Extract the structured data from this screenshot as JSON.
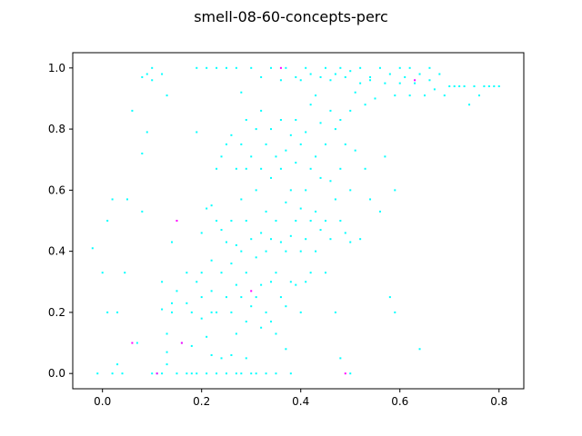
{
  "chart_data": {
    "type": "scatter",
    "title": "smell-08-60-concepts-perc",
    "xlabel": "",
    "ylabel": "",
    "xlim": [
      -0.06,
      0.85
    ],
    "ylim": [
      -0.05,
      1.05
    ],
    "xticks": [
      0.0,
      0.2,
      0.4,
      0.6,
      0.8
    ],
    "yticks": [
      0.0,
      0.2,
      0.4,
      0.6,
      0.8,
      1.0
    ],
    "xtick_labels": [
      "0.0",
      "0.2",
      "0.4",
      "0.6",
      "0.8"
    ],
    "ytick_labels": [
      "0.0",
      "0.2",
      "0.4",
      "0.6",
      "0.8",
      "1.0"
    ],
    "grid": false,
    "legend": "none",
    "series": [
      {
        "color": "#00ffff",
        "points": [
          [
            -0.02,
            0.41
          ],
          [
            -0.01,
            0.0
          ],
          [
            0.0,
            0.33
          ],
          [
            0.01,
            0.5
          ],
          [
            0.01,
            0.2
          ],
          [
            0.02,
            0.57
          ],
          [
            0.02,
            0.0
          ],
          [
            0.03,
            0.03
          ],
          [
            0.03,
            0.2
          ],
          [
            0.04,
            0.0
          ],
          [
            0.045,
            0.33
          ],
          [
            0.05,
            0.57
          ],
          [
            0.06,
            0.86
          ],
          [
            0.07,
            0.1
          ],
          [
            0.08,
            0.72
          ],
          [
            0.08,
            0.53
          ],
          [
            0.09,
            0.79
          ],
          [
            0.08,
            0.97
          ],
          [
            0.09,
            0.98
          ],
          [
            0.1,
            0.96
          ],
          [
            0.1,
            0.0
          ],
          [
            0.1,
            1.0
          ],
          [
            0.11,
            0.0
          ],
          [
            0.12,
            0.0
          ],
          [
            0.12,
            0.98
          ],
          [
            0.13,
            0.91
          ],
          [
            0.13,
            0.03
          ],
          [
            0.12,
            0.3
          ],
          [
            0.12,
            0.21
          ],
          [
            0.13,
            0.13
          ],
          [
            0.13,
            0.07
          ],
          [
            0.14,
            0.43
          ],
          [
            0.14,
            0.2
          ],
          [
            0.14,
            0.23
          ],
          [
            0.15,
            0.0
          ],
          [
            0.15,
            0.27
          ],
          [
            0.16,
            0.1
          ],
          [
            0.17,
            0.0
          ],
          [
            0.17,
            0.33
          ],
          [
            0.17,
            0.23
          ],
          [
            0.18,
            0.2
          ],
          [
            0.18,
            0.09
          ],
          [
            0.18,
            0.0
          ],
          [
            0.19,
            0.79
          ],
          [
            0.19,
            0.3
          ],
          [
            0.19,
            0.0
          ],
          [
            0.19,
            1.0
          ],
          [
            0.2,
            0.46
          ],
          [
            0.2,
            0.33
          ],
          [
            0.2,
            0.25
          ],
          [
            0.2,
            0.18
          ],
          [
            0.21,
            0.54
          ],
          [
            0.21,
            0.0
          ],
          [
            0.21,
            0.12
          ],
          [
            0.21,
            1.0
          ],
          [
            0.22,
            0.55
          ],
          [
            0.22,
            0.37
          ],
          [
            0.22,
            0.27
          ],
          [
            0.22,
            0.2
          ],
          [
            0.22,
            0.06
          ],
          [
            0.23,
            0.67
          ],
          [
            0.23,
            0.5
          ],
          [
            0.23,
            0.2
          ],
          [
            0.23,
            0.0
          ],
          [
            0.23,
            1.0
          ],
          [
            0.24,
            0.71
          ],
          [
            0.24,
            0.47
          ],
          [
            0.24,
            0.33
          ],
          [
            0.24,
            0.05
          ],
          [
            0.25,
            0.75
          ],
          [
            0.25,
            0.43
          ],
          [
            0.25,
            0.25
          ],
          [
            0.25,
            0.0
          ],
          [
            0.25,
            1.0
          ],
          [
            0.26,
            0.78
          ],
          [
            0.26,
            0.5
          ],
          [
            0.26,
            0.36
          ],
          [
            0.26,
            0.2
          ],
          [
            0.26,
            0.06
          ],
          [
            0.27,
            0.67
          ],
          [
            0.27,
            0.42
          ],
          [
            0.27,
            0.29
          ],
          [
            0.27,
            0.13
          ],
          [
            0.27,
            0.0
          ],
          [
            0.27,
            1.0
          ],
          [
            0.28,
            0.75
          ],
          [
            0.28,
            0.57
          ],
          [
            0.28,
            0.4
          ],
          [
            0.28,
            0.25
          ],
          [
            0.28,
            0.0
          ],
          [
            0.28,
            0.92
          ],
          [
            0.29,
            0.83
          ],
          [
            0.29,
            0.67
          ],
          [
            0.29,
            0.5
          ],
          [
            0.29,
            0.33
          ],
          [
            0.29,
            0.17
          ],
          [
            0.29,
            0.05
          ],
          [
            0.3,
            0.71
          ],
          [
            0.3,
            0.44
          ],
          [
            0.3,
            0.22
          ],
          [
            0.3,
            0.0
          ],
          [
            0.3,
            1.0
          ],
          [
            0.31,
            0.8
          ],
          [
            0.31,
            0.6
          ],
          [
            0.31,
            0.38
          ],
          [
            0.31,
            0.25
          ],
          [
            0.31,
            0.0
          ],
          [
            0.32,
            0.86
          ],
          [
            0.32,
            0.67
          ],
          [
            0.32,
            0.46
          ],
          [
            0.32,
            0.29
          ],
          [
            0.32,
            0.15
          ],
          [
            0.32,
            0.97
          ],
          [
            0.33,
            0.75
          ],
          [
            0.33,
            0.53
          ],
          [
            0.33,
            0.4
          ],
          [
            0.33,
            0.2
          ],
          [
            0.33,
            0.0
          ],
          [
            0.34,
            0.8
          ],
          [
            0.34,
            0.64
          ],
          [
            0.34,
            0.44
          ],
          [
            0.34,
            0.3
          ],
          [
            0.34,
            0.17
          ],
          [
            0.34,
            1.0
          ],
          [
            0.35,
            0.71
          ],
          [
            0.35,
            0.5
          ],
          [
            0.35,
            0.33
          ],
          [
            0.35,
            0.13
          ],
          [
            0.35,
            0.0
          ],
          [
            0.36,
            0.83
          ],
          [
            0.36,
            0.67
          ],
          [
            0.36,
            0.43
          ],
          [
            0.36,
            0.25
          ],
          [
            0.36,
            0.96
          ],
          [
            0.37,
            0.73
          ],
          [
            0.37,
            0.56
          ],
          [
            0.37,
            0.4
          ],
          [
            0.37,
            0.22
          ],
          [
            0.37,
            0.08
          ],
          [
            0.37,
            1.0
          ],
          [
            0.38,
            0.78
          ],
          [
            0.38,
            0.6
          ],
          [
            0.38,
            0.45
          ],
          [
            0.38,
            0.3
          ],
          [
            0.38,
            0.0
          ],
          [
            0.39,
            0.83
          ],
          [
            0.39,
            0.69
          ],
          [
            0.39,
            0.5
          ],
          [
            0.39,
            0.29
          ],
          [
            0.39,
            0.97
          ],
          [
            0.4,
            0.75
          ],
          [
            0.4,
            0.54
          ],
          [
            0.4,
            0.4
          ],
          [
            0.4,
            0.2
          ],
          [
            0.4,
            0.96
          ],
          [
            0.41,
            0.79
          ],
          [
            0.41,
            0.6
          ],
          [
            0.41,
            0.44
          ],
          [
            0.41,
            0.3
          ],
          [
            0.41,
            1.0
          ],
          [
            0.42,
            0.88
          ],
          [
            0.42,
            0.67
          ],
          [
            0.42,
            0.5
          ],
          [
            0.42,
            0.33
          ],
          [
            0.42,
            0.98
          ],
          [
            0.43,
            0.71
          ],
          [
            0.43,
            0.53
          ],
          [
            0.43,
            0.4
          ],
          [
            0.43,
            0.91
          ],
          [
            0.44,
            0.82
          ],
          [
            0.44,
            0.64
          ],
          [
            0.44,
            0.47
          ],
          [
            0.44,
            0.97
          ],
          [
            0.45,
            0.75
          ],
          [
            0.45,
            0.5
          ],
          [
            0.45,
            0.33
          ],
          [
            0.45,
            1.0
          ],
          [
            0.46,
            0.86
          ],
          [
            0.46,
            0.63
          ],
          [
            0.46,
            0.44
          ],
          [
            0.46,
            0.96
          ],
          [
            0.47,
            0.8
          ],
          [
            0.47,
            0.57
          ],
          [
            0.47,
            0.2
          ],
          [
            0.47,
            0.98
          ],
          [
            0.48,
            0.83
          ],
          [
            0.48,
            0.67
          ],
          [
            0.48,
            0.5
          ],
          [
            0.48,
            0.05
          ],
          [
            0.48,
            1.0
          ],
          [
            0.49,
            0.75
          ],
          [
            0.49,
            0.46
          ],
          [
            0.49,
            0.97
          ],
          [
            0.5,
            0.86
          ],
          [
            0.5,
            0.6
          ],
          [
            0.5,
            0.43
          ],
          [
            0.5,
            0.0
          ],
          [
            0.5,
            0.99
          ],
          [
            0.51,
            0.92
          ],
          [
            0.51,
            0.73
          ],
          [
            0.52,
            0.95
          ],
          [
            0.52,
            0.44
          ],
          [
            0.52,
            1.0
          ],
          [
            0.53,
            0.88
          ],
          [
            0.53,
            0.67
          ],
          [
            0.54,
            0.96
          ],
          [
            0.54,
            0.57
          ],
          [
            0.54,
            0.97
          ],
          [
            0.55,
            0.9
          ],
          [
            0.56,
            1.0
          ],
          [
            0.56,
            0.53
          ],
          [
            0.57,
            0.95
          ],
          [
            0.57,
            0.71
          ],
          [
            0.58,
            0.25
          ],
          [
            0.58,
            0.98
          ],
          [
            0.59,
            0.91
          ],
          [
            0.59,
            0.6
          ],
          [
            0.59,
            0.2
          ],
          [
            0.6,
            1.0
          ],
          [
            0.6,
            0.95
          ],
          [
            0.61,
            0.97
          ],
          [
            0.62,
            0.91
          ],
          [
            0.62,
            1.0
          ],
          [
            0.63,
            0.95
          ],
          [
            0.64,
            0.08
          ],
          [
            0.64,
            0.98
          ],
          [
            0.65,
            0.91
          ],
          [
            0.66,
            1.0
          ],
          [
            0.66,
            0.96
          ],
          [
            0.67,
            0.93
          ],
          [
            0.68,
            0.98
          ],
          [
            0.69,
            0.91
          ],
          [
            0.7,
            0.94
          ],
          [
            0.71,
            0.94
          ],
          [
            0.72,
            0.94
          ],
          [
            0.73,
            0.94
          ],
          [
            0.74,
            0.88
          ],
          [
            0.75,
            0.94
          ],
          [
            0.76,
            0.91
          ],
          [
            0.77,
            0.94
          ],
          [
            0.78,
            0.94
          ],
          [
            0.79,
            0.94
          ],
          [
            0.8,
            0.94
          ]
        ]
      },
      {
        "color": "#ff00ff",
        "points": [
          [
            0.06,
            0.1
          ],
          [
            0.11,
            0.0
          ],
          [
            0.15,
            0.5
          ],
          [
            0.16,
            0.1
          ],
          [
            0.3,
            0.27
          ],
          [
            0.36,
            1.0
          ],
          [
            0.49,
            0.0
          ],
          [
            0.63,
            0.96
          ]
        ]
      }
    ]
  }
}
